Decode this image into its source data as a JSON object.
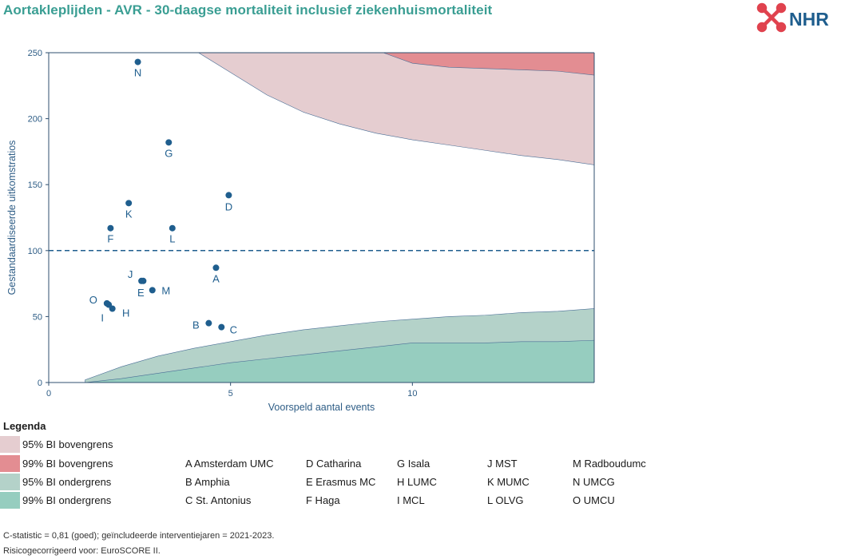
{
  "title": "Aortakleplijden - AVR - 30-daagse mortaliteit inclusief ziekenhuismortaliteit",
  "logo": {
    "text": "NHR"
  },
  "colors": {
    "title": "#3a9e93",
    "upper95": "#e5cdd0",
    "upper99": "#e38d92",
    "lower95": "#b4d2c9",
    "lower99": "#96cdbf",
    "point": "#1f5e8e",
    "axis": "#2e5d86"
  },
  "chart_data": {
    "type": "scatter",
    "xlabel": "Voorspeld aantal events",
    "ylabel": "Gestandaardiseerde uitkomstratios",
    "xlim": [
      0,
      15
    ],
    "ylim": [
      0,
      250
    ],
    "x_ticks": [
      0,
      5,
      10
    ],
    "y_ticks": [
      0,
      50,
      100,
      150,
      200,
      250
    ],
    "reference_line": 100,
    "points": [
      {
        "label": "A",
        "x": 4.6,
        "y": 87
      },
      {
        "label": "B",
        "x": 4.4,
        "y": 45
      },
      {
        "label": "C",
        "x": 4.75,
        "y": 42
      },
      {
        "label": "D",
        "x": 4.95,
        "y": 142
      },
      {
        "label": "E",
        "x": 2.6,
        "y": 77
      },
      {
        "label": "F",
        "x": 1.7,
        "y": 117
      },
      {
        "label": "G",
        "x": 3.3,
        "y": 182
      },
      {
        "label": "H",
        "x": 1.75,
        "y": 56
      },
      {
        "label": "I",
        "x": 1.65,
        "y": 59
      },
      {
        "label": "J",
        "x": 2.55,
        "y": 77
      },
      {
        "label": "K",
        "x": 2.2,
        "y": 136
      },
      {
        "label": "L",
        "x": 3.4,
        "y": 117
      },
      {
        "label": "M",
        "x": 2.85,
        "y": 70
      },
      {
        "label": "N",
        "x": 2.45,
        "y": 243
      },
      {
        "label": "O",
        "x": 1.6,
        "y": 60
      }
    ],
    "bands": {
      "upper95": {
        "x": [
          4,
          5,
          6,
          7,
          8,
          9,
          10,
          11,
          12,
          13,
          14,
          15
        ],
        "y": [
          252,
          235,
          218,
          205,
          196,
          189,
          184,
          180,
          176,
          172,
          169,
          165
        ]
      },
      "upper99": {
        "x": [
          9,
          10,
          11,
          12,
          13,
          14,
          15
        ],
        "y": [
          252,
          242,
          239,
          238,
          237,
          236,
          233
        ]
      },
      "lower95": {
        "x": [
          1,
          2,
          3,
          4,
          5,
          6,
          7,
          8,
          9,
          10,
          11,
          12,
          13,
          14,
          15
        ],
        "y": [
          2,
          12,
          20,
          26,
          31,
          36,
          40,
          43,
          46,
          48,
          50,
          51,
          53,
          54,
          56
        ]
      },
      "lower99": {
        "x": [
          1,
          2,
          3,
          4,
          5,
          6,
          7,
          8,
          9,
          10,
          11,
          12,
          13,
          14,
          15
        ],
        "y": [
          0,
          3,
          7,
          11,
          15,
          18,
          21,
          24,
          27,
          30,
          30,
          30,
          31,
          31,
          32
        ]
      }
    }
  },
  "legend": {
    "title": "Legenda",
    "items": [
      {
        "label": "95% BI bovengrens",
        "color": "#e5cdd0"
      },
      {
        "label": "99% BI bovengrens",
        "color": "#e38d92"
      },
      {
        "label": "95% BI ondergrens",
        "color": "#b4d2c9"
      },
      {
        "label": "99% BI ondergrens",
        "color": "#96cdbf"
      }
    ]
  },
  "hospital_key": [
    [
      "A Amsterdam UMC",
      "B Amphia",
      "C St. Antonius"
    ],
    [
      "D Catharina",
      "E Erasmus MC",
      "F Haga"
    ],
    [
      "G Isala",
      "H LUMC",
      "I MCL"
    ],
    [
      "J MST",
      "K MUMC",
      "L OLVG"
    ],
    [
      "M Radboudumc",
      "N UMCG",
      "O UMCU"
    ]
  ],
  "footnotes": [
    "C-statistic =  0,81 (goed); geïncludeerde interventiejaren = 2021-2023.",
    "Risicogecorrigeerd voor: EuroSCORE II."
  ]
}
